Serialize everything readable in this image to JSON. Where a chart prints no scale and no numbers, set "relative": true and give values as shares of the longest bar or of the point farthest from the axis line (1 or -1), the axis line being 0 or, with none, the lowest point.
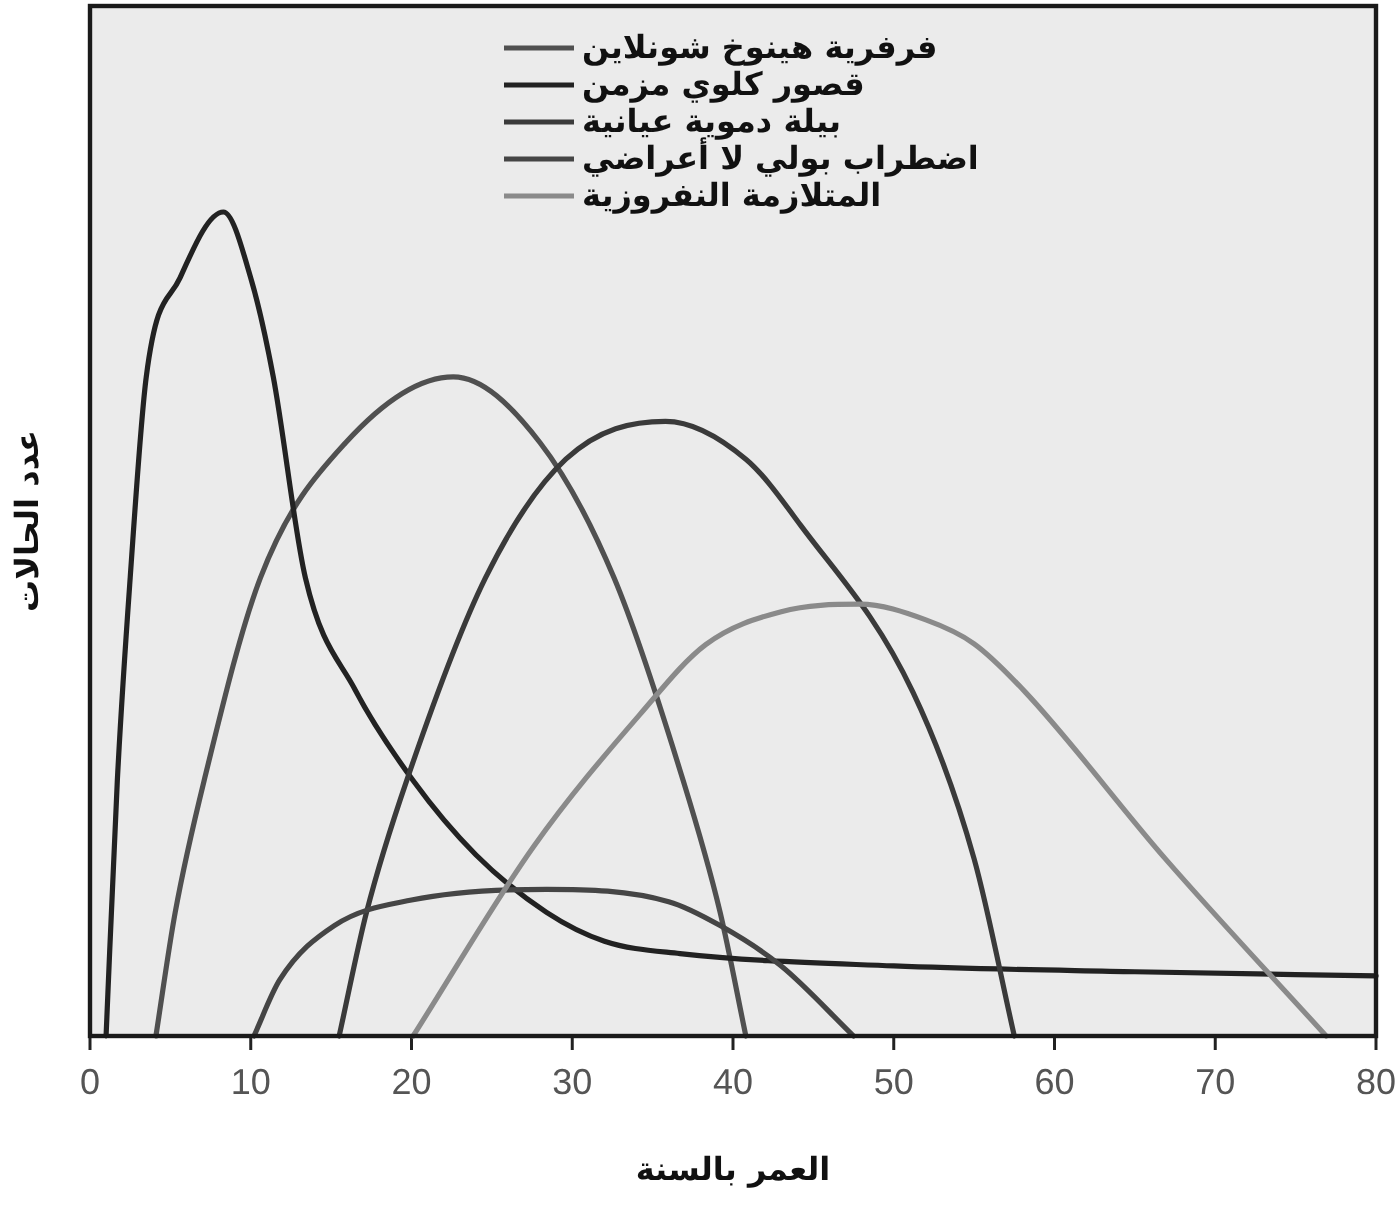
{
  "chart_data": {
    "type": "line",
    "xlabel": "العمر بالسنة",
    "ylabel": "عدد الحالات",
    "relative": true,
    "xlim": [
      0,
      80
    ],
    "xticks": [
      0,
      10,
      20,
      30,
      40,
      50,
      60,
      70,
      80
    ],
    "legend": "top right",
    "grid": false,
    "marker": "none",
    "line_style": "solid",
    "series": [
      {
        "name": "فرفرية هينوخ شونلاين",
        "color": "#505050",
        "x": [
          4.1,
          5.3,
          7.1,
          10.6,
          15.9,
          22.6,
          28,
          32.6,
          36.9,
          39.2,
          40.8
        ],
        "values": [
          0,
          0.15,
          0.31,
          0.556,
          0.72,
          0.8,
          0.72,
          0.556,
          0.31,
          0.15,
          0
        ]
      },
      {
        "name": "قصور كلوي مزمن",
        "color": "#222222",
        "x": [
          1,
          1.7,
          2.5,
          3.5,
          5.6,
          8.3,
          10,
          11.4,
          13.4,
          16.5,
          20.1,
          24,
          28.4,
          32,
          36.7,
          50,
          65,
          80
        ],
        "values": [
          0,
          0.31,
          0.556,
          0.8,
          0.92,
          1,
          0.92,
          0.8,
          0.556,
          0.42,
          0.31,
          0.22,
          0.15,
          0.115,
          0.1,
          0.085,
          0.078,
          0.073
        ]
      },
      {
        "name": "بيلة دموية عيانية",
        "color": "#3a3a3a",
        "x": [
          15.5,
          17.2,
          19.7,
          24.6,
          29.6,
          35.8,
          40.8,
          44.2,
          51.2,
          55,
          57.5
        ],
        "values": [
          0,
          0.15,
          0.31,
          0.556,
          0.7,
          0.746,
          0.7,
          0.62,
          0.417,
          0.215,
          0
        ]
      },
      {
        "name": "اضطراب بولي لا أعراضي",
        "color": "#454545",
        "x": [
          10.2,
          11.8,
          15.2,
          20,
          28.4,
          36,
          39.2,
          43,
          47.5
        ],
        "values": [
          0,
          0.068,
          0.134,
          0.165,
          0.178,
          0.163,
          0.134,
          0.085,
          0
        ]
      },
      {
        "name": "المتلازمة النفروزية",
        "color": "#8a8a8a",
        "x": [
          20.1,
          27.6,
          34.2,
          38.3,
          43,
          47.9,
          52,
          55,
          58.2,
          66.9,
          76.9
        ],
        "values": [
          0,
          0.23,
          0.39,
          0.475,
          0.515,
          0.524,
          0.505,
          0.476,
          0.417,
          0.215,
          0
        ]
      }
    ]
  }
}
